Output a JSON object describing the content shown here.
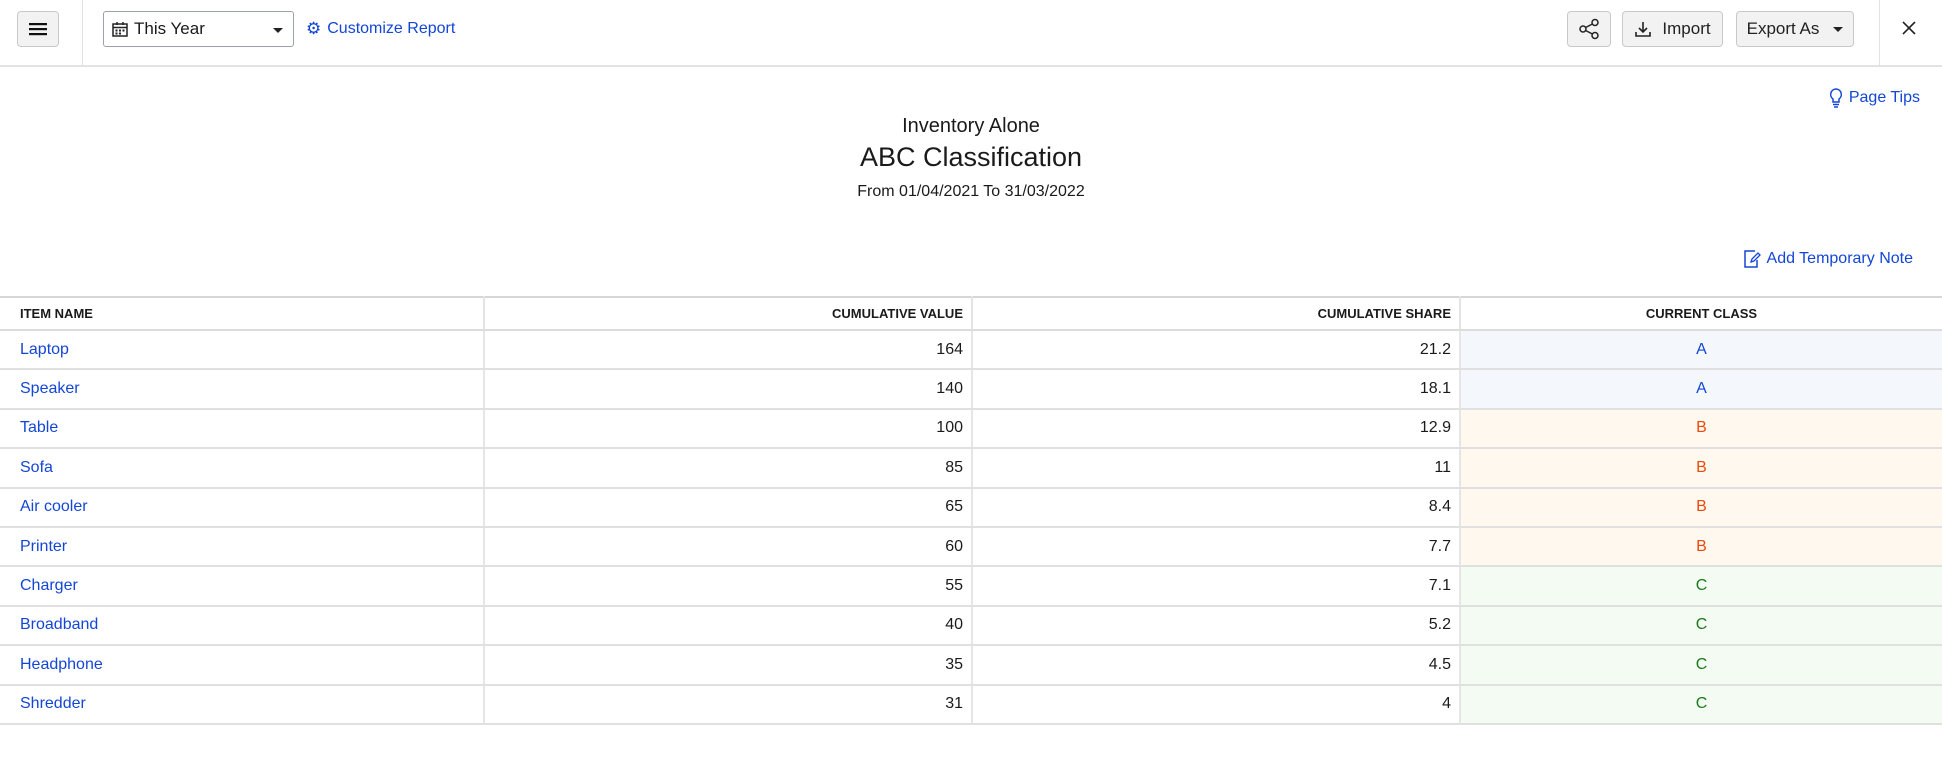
{
  "toolbar": {
    "menu_icon": "hamburger-icon",
    "period": "This Year",
    "customize": "Customize Report",
    "import": "Import",
    "export": "Export As"
  },
  "report": {
    "page_tips": "Page Tips",
    "company": "Inventory Alone",
    "title": "ABC Classification",
    "date_range": "From 01/04/2021 To 31/03/2022",
    "add_note": "Add Temporary Note"
  },
  "table": {
    "headers": [
      "ITEM NAME",
      "CUMULATIVE VALUE",
      "CUMULATIVE SHARE",
      "CURRENT CLASS"
    ],
    "rows": [
      [
        "Laptop",
        "164",
        "21.2",
        "A"
      ],
      [
        "Speaker",
        "140",
        "18.1",
        "A"
      ],
      [
        "Table",
        "100",
        "12.9",
        "B"
      ],
      [
        "Sofa",
        "85",
        "11",
        "B"
      ],
      [
        "Air cooler",
        "65",
        "8.4",
        "B"
      ],
      [
        "Printer",
        "60",
        "7.7",
        "B"
      ],
      [
        "Charger",
        "55",
        "7.1",
        "C"
      ],
      [
        "Broadband",
        "40",
        "5.2",
        "C"
      ],
      [
        "Headphone",
        "35",
        "4.5",
        "C"
      ],
      [
        "Shredder",
        "31",
        "4",
        "C"
      ]
    ]
  },
  "colors": {
    "link": "#1346d6",
    "class_a": "#1346d6",
    "class_b": "#ee4a0d",
    "class_c": "#1b7a1b"
  }
}
